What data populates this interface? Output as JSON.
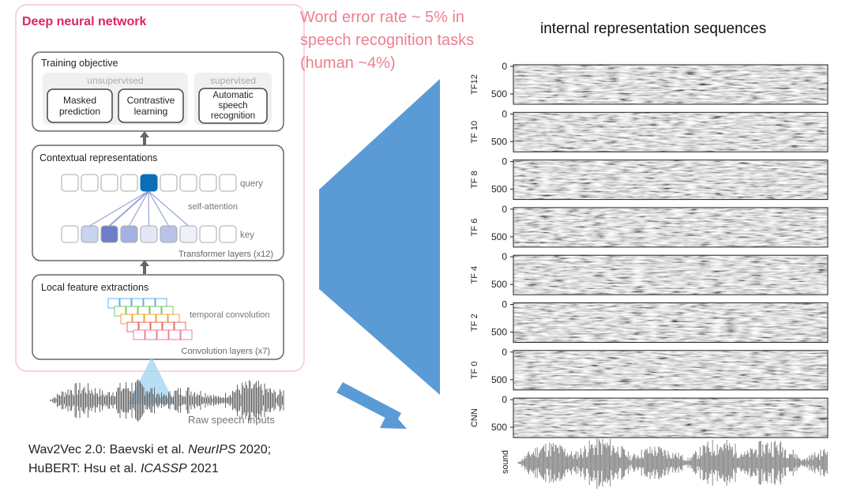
{
  "diagram": {
    "box_title": "Deep neural network",
    "training": {
      "title": "Training objective",
      "unsupervised_label": "unsupervised",
      "supervised_label": "supervised",
      "masked": [
        "Masked",
        "prediction"
      ],
      "contrastive": [
        "Contrastive",
        "learning"
      ],
      "asr": [
        "Automatic",
        "speech",
        "recognition"
      ]
    },
    "contextual": {
      "title": "Contextual representations",
      "query": "query",
      "self_attention": "self-attention",
      "key": "key",
      "transformer": "Transformer layers (x12)"
    },
    "local": {
      "title": "Local feature extractions",
      "temporal": "temporal convolution",
      "conv_layers": "Convolution layers (x7)"
    },
    "raw_input": "Raw speech inputs",
    "colors": {
      "box_border": "#f7c5cd",
      "box_title": "#e0245e",
      "query_fill": "#0b6fb8",
      "arrow_blue": "#5b9bd5",
      "wer_text": "#ee7f8f"
    }
  },
  "annotation": {
    "wer_lines": [
      "Word error rate ~ 5% in",
      "speech recognition tasks",
      "(human ~4%)"
    ]
  },
  "citation": {
    "line1_prefix": "Wav2Vec 2.0: Baevski et al. ",
    "line1_venue": "NeurIPS",
    "line1_suffix": " 2020;",
    "line2_prefix": "HuBERT: Hsu et al. ",
    "line2_venue": "ICASSP",
    "line2_suffix": " 2021"
  },
  "internal": {
    "title": "internal representation sequences",
    "panels": [
      {
        "label": "TF12",
        "tick_top": "0",
        "tick_bottom": "500"
      },
      {
        "label": "TF 10",
        "tick_top": "0",
        "tick_bottom": "500"
      },
      {
        "label": "TF 8",
        "tick_top": "0",
        "tick_bottom": "500"
      },
      {
        "label": "TF 6",
        "tick_top": "0",
        "tick_bottom": "500"
      },
      {
        "label": "TF 4",
        "tick_top": "0",
        "tick_bottom": "500"
      },
      {
        "label": "TF 2",
        "tick_top": "0",
        "tick_bottom": "500"
      },
      {
        "label": "TF 0",
        "tick_top": "0",
        "tick_bottom": "500"
      },
      {
        "label": "CNN",
        "tick_top": "0",
        "tick_bottom": "500"
      }
    ],
    "sound_label": "sound"
  }
}
